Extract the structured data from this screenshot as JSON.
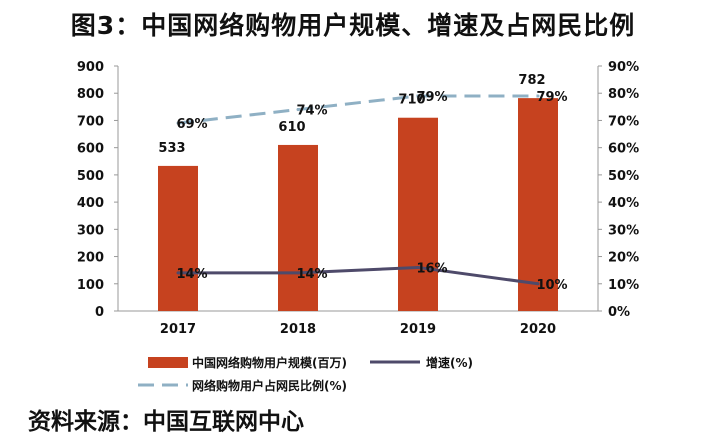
{
  "title": "图3：中国网络购物用户规模、增速及占网民比例",
  "source": "资料来源：中国互联网中心",
  "chart_data": {
    "type": "bar",
    "categories": [
      "2017",
      "2018",
      "2019",
      "2020"
    ],
    "y_left": {
      "min": 0,
      "max": 900,
      "ticks": [
        "0",
        "100",
        "200",
        "300",
        "400",
        "500",
        "600",
        "700",
        "800",
        "900"
      ]
    },
    "y_right": {
      "min": 0,
      "max": 90,
      "ticks": [
        "0%",
        "10%",
        "20%",
        "30%",
        "40%",
        "50%",
        "60%",
        "70%",
        "80%",
        "90%"
      ]
    },
    "series": [
      {
        "name": "中国网络购物用户规模(百万)",
        "type": "bar",
        "axis": "left",
        "values": [
          533,
          610,
          710,
          782
        ],
        "labels": [
          "533",
          "610",
          "710",
          "782"
        ],
        "color": "#c6421f"
      },
      {
        "name": "增速(%)",
        "type": "line",
        "axis": "right",
        "values": [
          14,
          14,
          16,
          10
        ],
        "labels": [
          "14%",
          "14%",
          "16%",
          "10%"
        ],
        "color": "#4e4a6a"
      },
      {
        "name": "网络购物用户占网民比例(%)",
        "type": "line",
        "axis": "right",
        "dashed": true,
        "values": [
          69,
          74,
          79,
          79
        ],
        "labels": [
          "69%",
          "74%",
          "79%",
          "79%"
        ],
        "color": "#8fb0c4"
      }
    ],
    "grid": false,
    "legend_position": "bottom"
  }
}
